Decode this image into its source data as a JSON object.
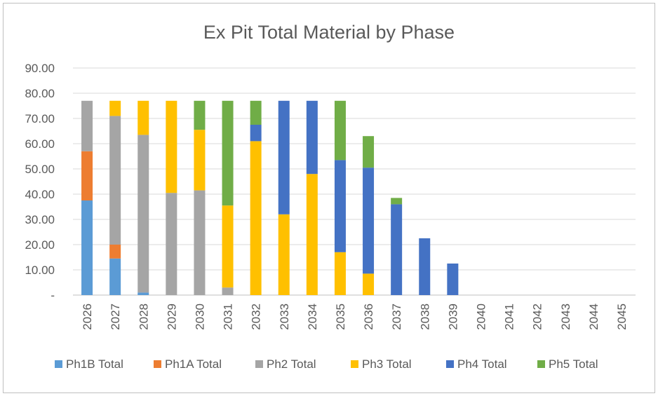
{
  "chart_data": {
    "type": "bar",
    "stacked": true,
    "title": "Ex Pit Total Material by Phase",
    "xlabel": "",
    "ylabel": "",
    "ylim": [
      0,
      90
    ],
    "yticks": [
      "-",
      "10.00",
      "20.00",
      "30.00",
      "40.00",
      "50.00",
      "60.00",
      "70.00",
      "80.00",
      "90.00"
    ],
    "grid": true,
    "legend_position": "bottom",
    "categories": [
      "2026",
      "2027",
      "2028",
      "2029",
      "2030",
      "2031",
      "2032",
      "2033",
      "2034",
      "2035",
      "2036",
      "2037",
      "2038",
      "2039",
      "2040",
      "2041",
      "2042",
      "2043",
      "2044",
      "2045"
    ],
    "series": [
      {
        "name": "Ph1B Total",
        "color": "#5b9bd5",
        "values": [
          37.5,
          14.5,
          1,
          0,
          0,
          0,
          0,
          0,
          0,
          0,
          0,
          0,
          0,
          0,
          0,
          0,
          0,
          0,
          0,
          0
        ]
      },
      {
        "name": "Ph1A Total",
        "color": "#ed7d31",
        "values": [
          19.5,
          5.5,
          0,
          0,
          0,
          0,
          0,
          0,
          0,
          0,
          0,
          0,
          0,
          0,
          0,
          0,
          0,
          0,
          0,
          0
        ]
      },
      {
        "name": "Ph2 Total",
        "color": "#a5a5a5",
        "values": [
          20,
          51,
          62.5,
          40.5,
          41.5,
          3,
          0,
          0,
          0,
          0,
          0,
          0,
          0,
          0,
          0,
          0,
          0,
          0,
          0,
          0
        ]
      },
      {
        "name": "Ph3 Total",
        "color": "#ffc000",
        "values": [
          0,
          6,
          13.5,
          36.5,
          24,
          32.5,
          61,
          32,
          48,
          17,
          8.5,
          0,
          0,
          0,
          0,
          0,
          0,
          0,
          0,
          0
        ]
      },
      {
        "name": "Ph4 Total",
        "color": "#4472c4",
        "values": [
          0,
          0,
          0,
          0,
          0,
          0,
          6.5,
          45,
          29,
          36.5,
          42,
          36,
          22.5,
          12.5,
          0,
          0,
          0,
          0,
          0,
          0
        ]
      },
      {
        "name": "Ph5 Total",
        "color": "#70ad47",
        "values": [
          0,
          0,
          0,
          0,
          11.5,
          41.5,
          9.5,
          0,
          0,
          23.5,
          12.5,
          2.5,
          0,
          0,
          0,
          0,
          0,
          0,
          0,
          0
        ]
      }
    ]
  }
}
